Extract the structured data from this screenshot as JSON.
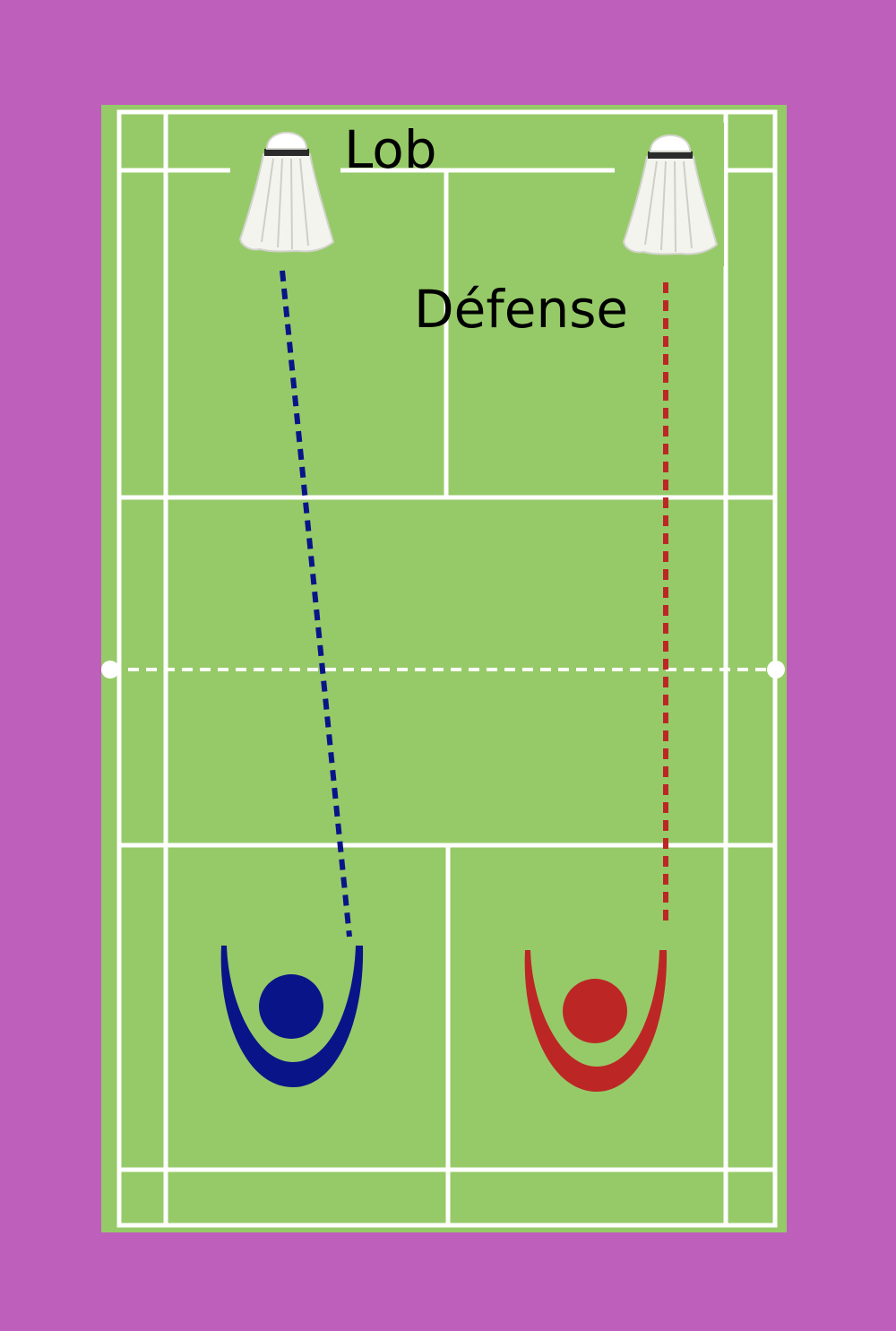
{
  "colors": {
    "background": "#be5fbc",
    "court": "#96ca68",
    "court_lines": "#ffffff",
    "shuttle_body": "#f4f4ef",
    "shuttle_cork": "#ffffff",
    "shuttle_band": "#2b2b2b",
    "player_blue": "#0a1489",
    "player_red": "#bc2726",
    "trajectory_blue": "#0a1489",
    "trajectory_red": "#bc2726",
    "text": "#000000"
  },
  "labels": {
    "lob": "Lob",
    "defense": "Défense"
  },
  "icons": {
    "shuttlecock": "shuttlecock-icon",
    "player": "player-figure-icon"
  }
}
